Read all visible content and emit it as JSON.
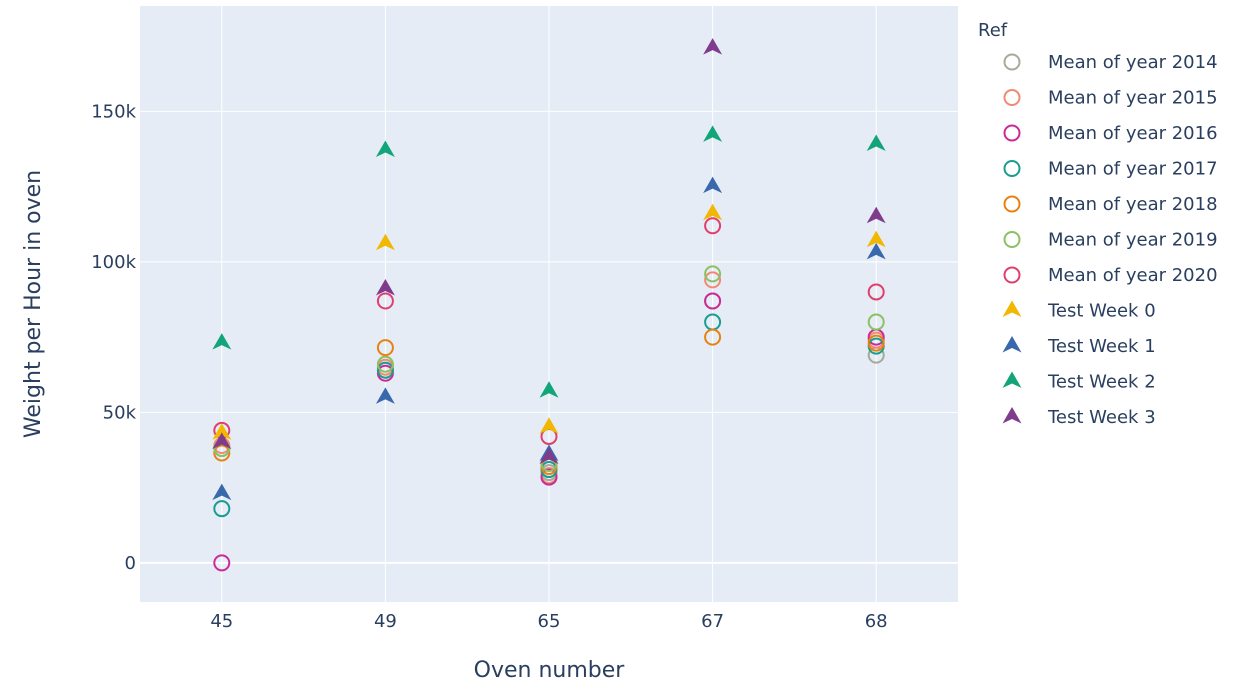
{
  "chart_data": {
    "type": "scatter",
    "xlabel": "Oven number",
    "ylabel": "Weight per Hour in oven",
    "categories": [
      "45",
      "49",
      "65",
      "67",
      "68"
    ],
    "y_ticks": [
      0,
      50000,
      100000,
      150000
    ],
    "y_tick_labels": [
      "0",
      "50k",
      "100k",
      "150k"
    ],
    "ylim": [
      -13000,
      185000
    ],
    "grid": true,
    "plot_bgcolor": "#e5ecf6",
    "legend": {
      "title": "Ref",
      "position": "right"
    },
    "series": [
      {
        "name": "Mean of year 2014",
        "marker": "circle-open",
        "color": "#a5aa99",
        "values": [
          38000,
          64000,
          30000,
          87000,
          69000
        ]
      },
      {
        "name": "Mean of year 2015",
        "marker": "circle-open",
        "color": "#f08a73",
        "values": [
          39000,
          65000,
          29000,
          94000,
          74000
        ]
      },
      {
        "name": "Mean of year 2016",
        "marker": "circle-open",
        "color": "#cc2a95",
        "values": [
          0,
          63000,
          28500,
          87000,
          75000
        ]
      },
      {
        "name": "Mean of year 2017",
        "marker": "circle-open",
        "color": "#1a9d91",
        "values": [
          18000,
          64000,
          31000,
          80000,
          72000
        ]
      },
      {
        "name": "Mean of year 2018",
        "marker": "circle-open",
        "color": "#e68310",
        "values": [
          36500,
          71500,
          32000,
          75000,
          73000
        ]
      },
      {
        "name": "Mean of year 2019",
        "marker": "circle-open",
        "color": "#8bc162",
        "values": [
          38000,
          66000,
          33000,
          96000,
          80000
        ]
      },
      {
        "name": "Mean of year 2020",
        "marker": "circle-open",
        "color": "#e03f6d",
        "values": [
          44000,
          87000,
          42000,
          112000,
          90000
        ]
      },
      {
        "name": "Test Week 0",
        "marker": "triangle-up",
        "color": "#f2b701",
        "values": [
          43000,
          106000,
          45000,
          116000,
          107000
        ]
      },
      {
        "name": "Test Week 1",
        "marker": "triangle-up",
        "color": "#3969ac",
        "values": [
          23000,
          55000,
          36000,
          125000,
          103000
        ]
      },
      {
        "name": "Test Week 2",
        "marker": "triangle-up",
        "color": "#11a579",
        "values": [
          73000,
          137000,
          57000,
          142000,
          139000
        ]
      },
      {
        "name": "Test Week 3",
        "marker": "triangle-up",
        "color": "#7f3c8d",
        "values": [
          40000,
          91000,
          35000,
          171000,
          115000
        ]
      }
    ]
  }
}
